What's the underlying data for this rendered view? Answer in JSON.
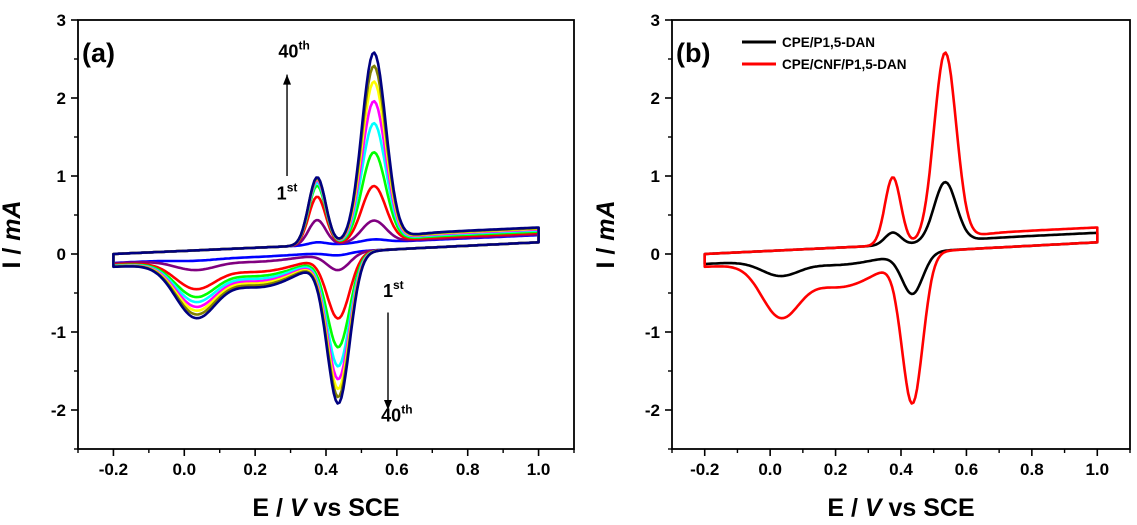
{
  "chart_data": [
    {
      "panel": "(a)",
      "type": "line",
      "xlabel": "E / V vs SCE",
      "ylabel": "I / mA",
      "xlim": [
        -0.3,
        1.1
      ],
      "ylim": [
        -2.5,
        3
      ],
      "xticks": [
        -0.2,
        0.0,
        0.2,
        0.4,
        0.6,
        0.8,
        1.0
      ],
      "xtick_labels": [
        "-0.2",
        "0.0",
        "0.2",
        "0.4",
        "0.6",
        "0.8",
        "1.0"
      ],
      "yticks": [
        -2,
        -1,
        0,
        1,
        2,
        3
      ],
      "ytick_labels": [
        "-2",
        "-1",
        "0",
        "1",
        "2",
        "3"
      ],
      "grid": false,
      "annotations": [
        {
          "text": "40",
          "sup": "th",
          "x": 0.31,
          "y": 2.52
        },
        {
          "text": "1",
          "sup": "st",
          "x": 0.29,
          "y": 0.7
        },
        {
          "text": "1",
          "sup": "st",
          "x": 0.59,
          "y": -0.55
        },
        {
          "text": "40",
          "sup": "th",
          "x": 0.6,
          "y": -2.15
        }
      ],
      "series": [
        {
          "color": "#0000ff",
          "ox1": 0.035,
          "ox2": 0.04,
          "rd1": -0.02,
          "rd2": -0.04
        },
        {
          "color": "#800080",
          "ox1": 0.32,
          "ox2": 0.28,
          "rd1": -0.12,
          "rd2": -0.22
        },
        {
          "color": "#ff0000",
          "ox1": 0.62,
          "ox2": 0.72,
          "rd1": -0.32,
          "rd2": -0.82
        },
        {
          "color": "#00ff00",
          "ox1": 0.76,
          "ox2": 1.15,
          "rd1": -0.4,
          "rd2": -1.18
        },
        {
          "color": "#00ffff",
          "ox1": 0.8,
          "ox2": 1.52,
          "rd1": -0.45,
          "rd2": -1.42
        },
        {
          "color": "#ff00ff",
          "ox1": 0.83,
          "ox2": 1.8,
          "rd1": -0.5,
          "rd2": -1.58
        },
        {
          "color": "#ffff00",
          "ox1": 0.85,
          "ox2": 2.05,
          "rd1": -0.54,
          "rd2": -1.7
        },
        {
          "color": "#808000",
          "ox1": 0.86,
          "ox2": 2.25,
          "rd1": -0.58,
          "rd2": -1.8
        },
        {
          "color": "#000080",
          "ox1": 0.87,
          "ox2": 2.42,
          "rd1": -0.62,
          "rd2": -1.88
        }
      ]
    },
    {
      "panel": "(b)",
      "type": "line",
      "xlabel": "E / V vs SCE",
      "ylabel": "I / mA",
      "xlim": [
        -0.3,
        1.1
      ],
      "ylim": [
        -2.5,
        3
      ],
      "xticks": [
        -0.2,
        0.0,
        0.2,
        0.4,
        0.6,
        0.8,
        1.0
      ],
      "xtick_labels": [
        "-0.2",
        "0.0",
        "0.2",
        "0.4",
        "0.6",
        "0.8",
        "1.0"
      ],
      "yticks": [
        -2,
        -1,
        0,
        1,
        2,
        3
      ],
      "ytick_labels": [
        "-2",
        "-1",
        "0",
        "1",
        "2",
        "3"
      ],
      "grid": false,
      "legend": "top-left",
      "series": [
        {
          "name": "CPE/P1,5-DAN",
          "color": "#000000",
          "ox1": 0.16,
          "ox2": 0.77,
          "rd1": -0.18,
          "rd2": -0.52
        },
        {
          "name": "CPE/CNF/P1,5-DAN",
          "color": "#ff0000",
          "ox1": 0.87,
          "ox2": 2.42,
          "rd1": -0.62,
          "rd2": -1.88
        }
      ]
    }
  ]
}
